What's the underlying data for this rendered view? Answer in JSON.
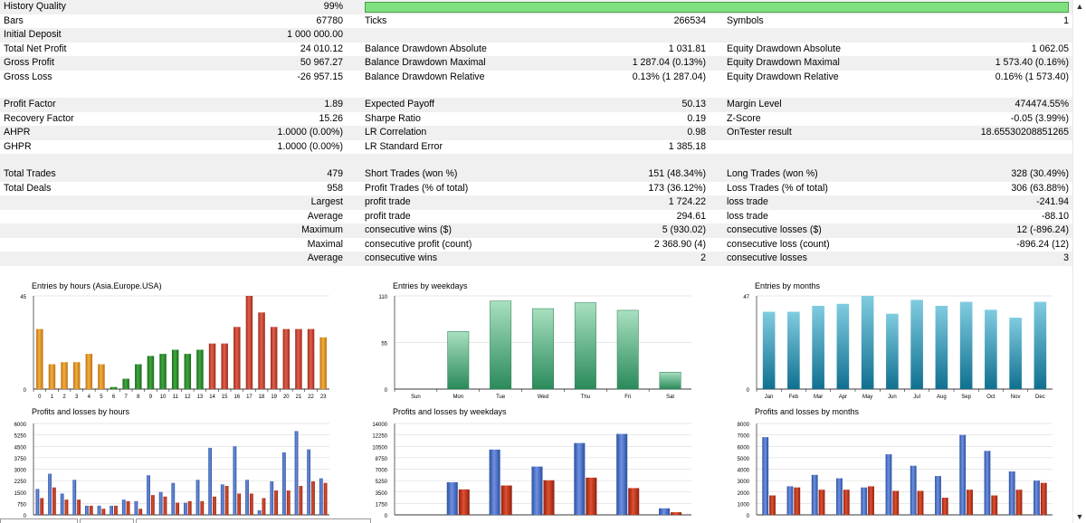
{
  "stats": {
    "history_quality": {
      "label": "History Quality",
      "value": "99%",
      "fraction": 0.99
    },
    "rows1": [
      {
        "l1": "Bars",
        "v1": "67780",
        "l2": "Ticks",
        "v2": "266534",
        "l3": "Symbols",
        "v3": "1"
      },
      {
        "l1": "Initial Deposit",
        "v1": "1 000 000.00",
        "l2": "",
        "v2": "",
        "l3": "",
        "v3": ""
      },
      {
        "l1": "Total Net Profit",
        "v1": "24 010.12",
        "l2": "Balance Drawdown Absolute",
        "v2": "1 031.81",
        "l3": "Equity Drawdown Absolute",
        "v3": "1 062.05"
      },
      {
        "l1": "Gross Profit",
        "v1": "50 967.27",
        "l2": "Balance Drawdown Maximal",
        "v2": "1 287.04 (0.13%)",
        "l3": "Equity Drawdown Maximal",
        "v3": "1 573.40 (0.16%)"
      },
      {
        "l1": "Gross Loss",
        "v1": "-26 957.15",
        "l2": "Balance Drawdown Relative",
        "v2": "0.13% (1 287.04)",
        "l3": "Equity Drawdown Relative",
        "v3": "0.16% (1 573.40)"
      }
    ],
    "rows2": [
      {
        "l1": "Profit Factor",
        "v1": "1.89",
        "l2": "Expected Payoff",
        "v2": "50.13",
        "l3": "Margin Level",
        "v3": "474474.55%"
      },
      {
        "l1": "Recovery Factor",
        "v1": "15.26",
        "l2": "Sharpe Ratio",
        "v2": "0.19",
        "l3": "Z-Score",
        "v3": "-0.05 (3.99%)"
      },
      {
        "l1": "AHPR",
        "v1": "1.0000 (0.00%)",
        "l2": "LR Correlation",
        "v2": "0.98",
        "l3": "OnTester result",
        "v3": "18.65530208851265"
      },
      {
        "l1": "GHPR",
        "v1": "1.0000 (0.00%)",
        "l2": "LR Standard Error",
        "v2": "1 385.18",
        "l3": "",
        "v3": ""
      }
    ],
    "rows3": [
      {
        "l1": "Total Trades",
        "v1": "479",
        "l2": "Short Trades (won %)",
        "v2": "151 (48.34%)",
        "l3": "Long Trades (won %)",
        "v3": "328 (30.49%)"
      },
      {
        "l1": "Total Deals",
        "v1": "958",
        "l2": "Profit Trades (% of total)",
        "v2": "173 (36.12%)",
        "l3": "Loss Trades (% of total)",
        "v3": "306 (63.88%)"
      },
      {
        "l1": "",
        "lv": "Largest",
        "l2": "profit trade",
        "v2": "1 724.22",
        "l3": "loss trade",
        "v3": "-241.94"
      },
      {
        "l1": "",
        "lv": "Average",
        "l2": "profit trade",
        "v2": "294.61",
        "l3": "loss trade",
        "v3": "-88.10"
      },
      {
        "l1": "",
        "lv": "Maximum",
        "l2": "consecutive wins ($)",
        "v2": "5 (930.02)",
        "l3": "consecutive losses ($)",
        "v3": "12 (-896.24)"
      },
      {
        "l1": "",
        "lv": "Maximal",
        "l2": "consecutive profit (count)",
        "v2": "2 368.90 (4)",
        "l3": "consecutive loss (count)",
        "v3": "-896.24 (12)"
      },
      {
        "l1": "",
        "lv": "Average",
        "l2": "consecutive wins",
        "v2": "2",
        "l3": "consecutive losses",
        "v3": "3"
      }
    ]
  },
  "colors": {
    "green_bar": "#7fe07f",
    "profit_blue": "#3a6cc0",
    "loss_red": "#b83a20",
    "week_green": "#3aa070",
    "month_teal": "#2090b0"
  },
  "chart_data": [
    {
      "type": "bar",
      "title": "Entries by hours (Asia.Europe.USA)",
      "categories": [
        "0",
        "1",
        "2",
        "3",
        "4",
        "5",
        "6",
        "7",
        "8",
        "9",
        "10",
        "11",
        "12",
        "13",
        "14",
        "15",
        "16",
        "17",
        "18",
        "19",
        "20",
        "21",
        "22",
        "23"
      ],
      "values": [
        29,
        12,
        13,
        13,
        17,
        12,
        1,
        5,
        12,
        16,
        17,
        19,
        17,
        19,
        22,
        22,
        30,
        45,
        37,
        30,
        29,
        29,
        29,
        25
      ],
      "y_ticks": [
        "0",
        "45"
      ],
      "ylim": [
        0,
        45
      ],
      "colors": [
        "#d08a1a",
        "#d08a1a",
        "#d08a1a",
        "#d08a1a",
        "#d08a1a",
        "#d08a1a",
        "#2a8a2a",
        "#2a8a2a",
        "#2a8a2a",
        "#2a8a2a",
        "#2a8a2a",
        "#2a8a2a",
        "#2a8a2a",
        "#2a8a2a",
        "#b83a20",
        "#b83a20",
        "#b83a20",
        "#b83a20",
        "#b83a20",
        "#b83a20",
        "#b83a20",
        "#b83a20",
        "#b83a20",
        "#d08a1a"
      ]
    },
    {
      "type": "bar",
      "title": "Entries by weekdays",
      "categories": [
        "Sun",
        "Mon",
        "Tue",
        "Wed",
        "Thu",
        "Fri",
        "Sat"
      ],
      "values": [
        0,
        68,
        104,
        95,
        102,
        93,
        20
      ],
      "y_ticks": [
        "0",
        "55",
        "110"
      ],
      "ylim": [
        0,
        110
      ]
    },
    {
      "type": "bar",
      "title": "Entries by months",
      "categories": [
        "Jan",
        "Feb",
        "Mar",
        "Apr",
        "May",
        "Jun",
        "Jul",
        "Aug",
        "Sep",
        "Oct",
        "Nov",
        "Dec"
      ],
      "values": [
        39,
        39,
        42,
        43,
        47,
        38,
        45,
        42,
        44,
        40,
        36,
        44
      ],
      "y_ticks": [
        "0",
        "47"
      ],
      "ylim": [
        0,
        47
      ]
    },
    {
      "type": "bar",
      "title": "Profits and losses by hours",
      "categories": [
        "0",
        "1",
        "2",
        "3",
        "4",
        "5",
        "6",
        "7",
        "8",
        "9",
        "10",
        "11",
        "12",
        "13",
        "14",
        "15",
        "16",
        "17",
        "18",
        "19",
        "20",
        "21",
        "22",
        "23"
      ],
      "series": [
        {
          "name": "",
          "values": [
            1700,
            2700,
            1400,
            2300,
            600,
            600,
            600,
            1000,
            900,
            2600,
            1500,
            2100,
            800,
            2300,
            4400,
            2000,
            4500,
            2300,
            300,
            2200,
            4100,
            5500,
            4300,
            2400
          ]
        },
        {
          "name": "",
          "values": [
            1100,
            1800,
            1000,
            1000,
            600,
            400,
            600,
            900,
            400,
            1300,
            1200,
            800,
            900,
            900,
            1200,
            1900,
            1400,
            1400,
            1100,
            1600,
            1600,
            1900,
            2200,
            2100
          ]
        }
      ],
      "y_ticks": [
        "0",
        "750",
        "1500",
        "2250",
        "3000",
        "3750",
        "4500",
        "5250",
        "6000"
      ],
      "ylim": [
        0,
        6000
      ]
    },
    {
      "type": "bar",
      "title": "Profits and losses by weekdays",
      "categories": [
        "Mon",
        "Tue",
        "Wed",
        "Thu",
        "Fri",
        "Sat"
      ],
      "series": [
        {
          "name": "",
          "values": [
            5000,
            10000,
            7400,
            11000,
            12400,
            1000
          ]
        },
        {
          "name": "",
          "values": [
            3900,
            4500,
            5300,
            5700,
            4100,
            400
          ]
        }
      ],
      "y_ticks": [
        "0",
        "1750",
        "3500",
        "5250",
        "7000",
        "8750",
        "10500",
        "12250",
        "14000"
      ],
      "ylim": [
        0,
        14000
      ]
    },
    {
      "type": "bar",
      "title": "Profits and losses by months",
      "categories": [
        "Jan",
        "Feb",
        "Mar",
        "Apr",
        "May",
        "Jun",
        "Jul",
        "Aug",
        "Sep",
        "Oct",
        "Nov",
        "Dec"
      ],
      "series": [
        {
          "name": "",
          "values": [
            6800,
            2500,
            3500,
            3200,
            2400,
            5300,
            4300,
            3400,
            7000,
            5600,
            3800,
            3000
          ]
        },
        {
          "name": "",
          "values": [
            1700,
            2400,
            2200,
            2200,
            2500,
            2100,
            2100,
            1500,
            2200,
            1700,
            2200,
            2800
          ]
        }
      ],
      "y_ticks": [
        "0",
        "1000",
        "2000",
        "3000",
        "4000",
        "5000",
        "6000",
        "7000",
        "8000"
      ],
      "ylim": [
        0,
        8000
      ]
    }
  ]
}
